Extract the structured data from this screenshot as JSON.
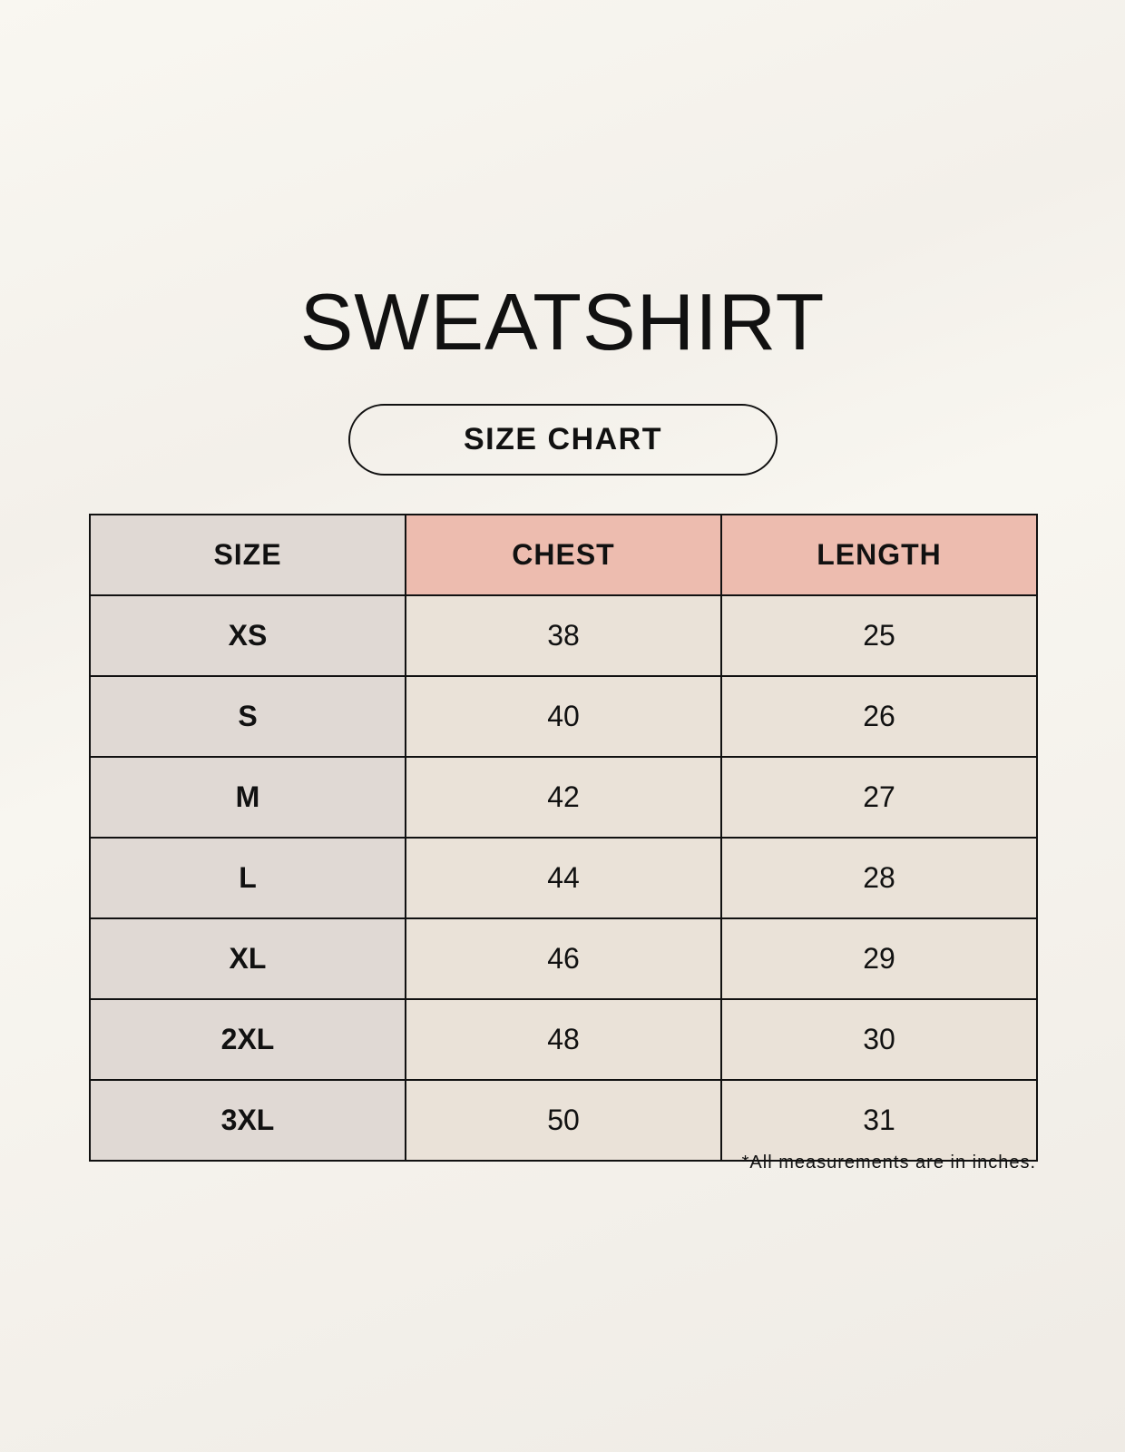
{
  "title": "SWEATSHIRT",
  "subtitle": "SIZE CHART",
  "table": {
    "headers": [
      "SIZE",
      "CHEST",
      "LENGTH"
    ],
    "rows": [
      [
        "XS",
        "38",
        "25"
      ],
      [
        "S",
        "40",
        "26"
      ],
      [
        "M",
        "42",
        "27"
      ],
      [
        "L",
        "44",
        "28"
      ],
      [
        "XL",
        "46",
        "29"
      ],
      [
        "2XL",
        "48",
        "30"
      ],
      [
        "3XL",
        "50",
        "31"
      ]
    ]
  },
  "footnote": "*All measurements are in inches.",
  "colors": {
    "size_column": "#e0d9d4",
    "header_accent": "#edbcaf",
    "cell": "#eae2d8",
    "background": "#f8f6f0"
  }
}
